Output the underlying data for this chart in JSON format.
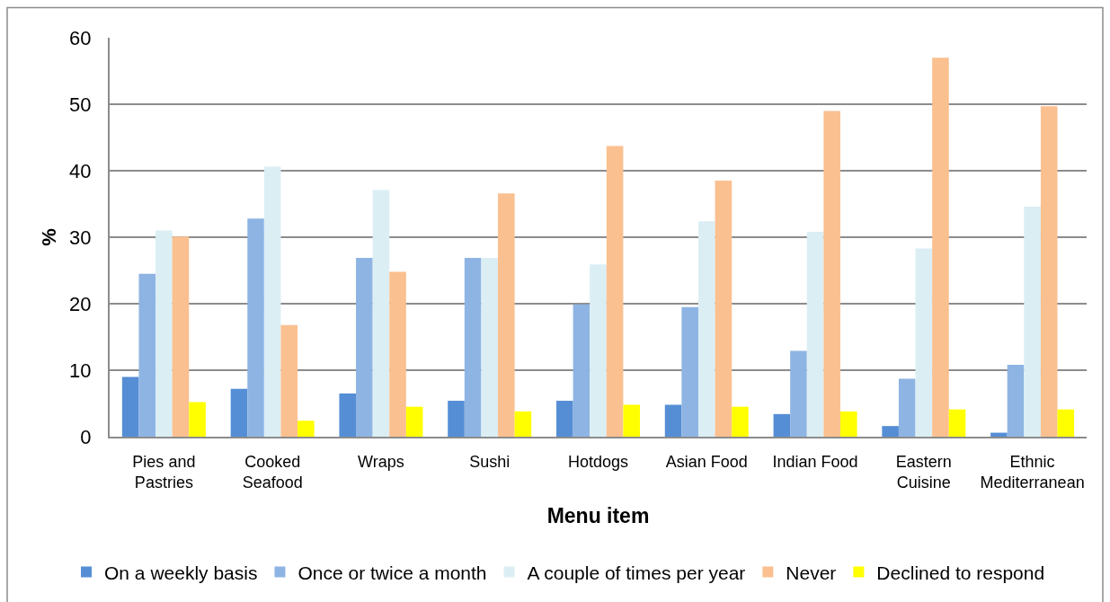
{
  "chart_data": {
    "type": "bar",
    "xlabel": "Menu item",
    "ylabel": "%",
    "categories": [
      "Pies and Pastries",
      "Cooked Seafood",
      "Wraps",
      "Sushi",
      "Hotdogs",
      "Asian Food",
      "Indian Food",
      "Eastern Cuisine",
      "Ethnic Mediterranean"
    ],
    "series": [
      {
        "name": "On a weekly basis",
        "color": "#558ed5",
        "values": [
          9.0,
          7.2,
          6.5,
          5.4,
          5.4,
          4.8,
          3.4,
          1.6,
          0.6
        ]
      },
      {
        "name": "Once or twice a month",
        "color": "#8eb4e3",
        "values": [
          24.5,
          32.8,
          26.9,
          26.9,
          19.9,
          19.5,
          12.9,
          8.7,
          10.8
        ]
      },
      {
        "name": "A couple of times per year",
        "color": "#dbeef4",
        "values": [
          31.0,
          40.6,
          37.1,
          26.9,
          25.9,
          32.4,
          30.8,
          28.3,
          34.6
        ]
      },
      {
        "name": "Never",
        "color": "#fac090",
        "values": [
          30.1,
          16.8,
          24.8,
          36.6,
          43.7,
          38.5,
          49.0,
          57.0,
          49.7
        ]
      },
      {
        "name": "Declined to respond",
        "color": "#ffff00",
        "values": [
          5.2,
          2.4,
          4.5,
          3.8,
          4.8,
          4.5,
          3.8,
          4.1,
          4.1
        ]
      }
    ],
    "ylim": [
      0,
      60
    ],
    "yticks": [
      0,
      10,
      20,
      30,
      40,
      50,
      60
    ],
    "grid": "y",
    "legend": "bottom"
  }
}
